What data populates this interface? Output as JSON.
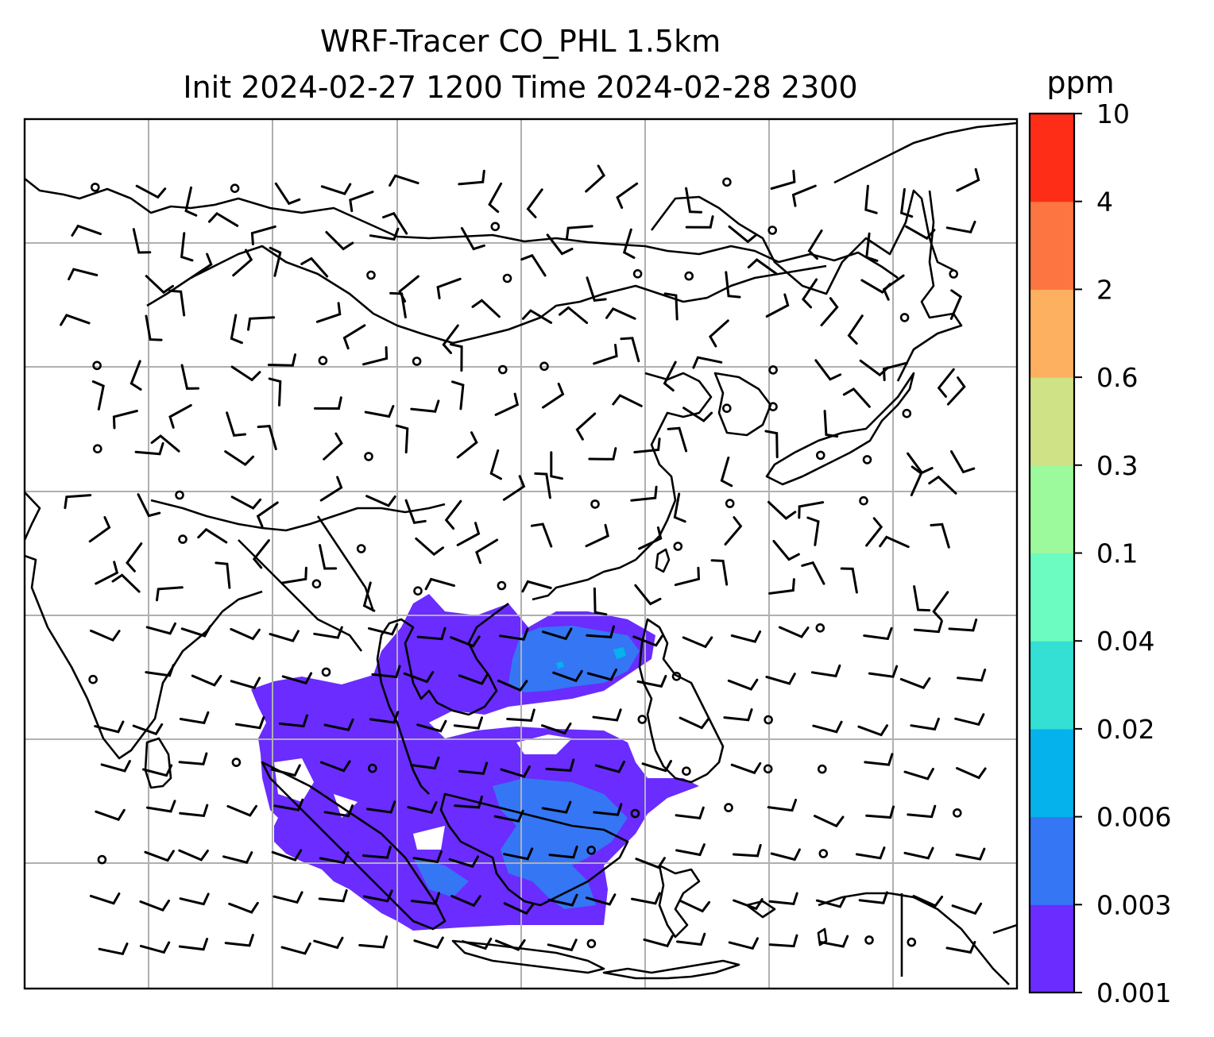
{
  "title": {
    "line1": "WRF-Tracer CO_PHL 1.5km",
    "line2": "Init 2024-02-27 1200 Time 2024-02-28 2300"
  },
  "colorbar": {
    "unit": "ppm",
    "ticks": [
      "0.001",
      "0.003",
      "0.006",
      "0.02",
      "0.04",
      "0.1",
      "0.3",
      "0.6",
      "2",
      "4",
      "10"
    ],
    "colors": [
      "#6a2cff",
      "#3476f4",
      "#05b2ec",
      "#34e0d4",
      "#6cfbc0",
      "#9cf99c",
      "#cfe286",
      "#fdb060",
      "#fd7540",
      "#fd2d18"
    ]
  },
  "map": {
    "grid_lines": true,
    "layers": [
      "coastlines",
      "country-borders",
      "wind-barbs",
      "tracer-concentration"
    ],
    "colors": {
      "plume_low": "#6a2cff",
      "plume_mid": "#3476f4",
      "plume_high": "#05b2ec",
      "lines": "#000000",
      "grid": "#b0b0b0"
    }
  }
}
